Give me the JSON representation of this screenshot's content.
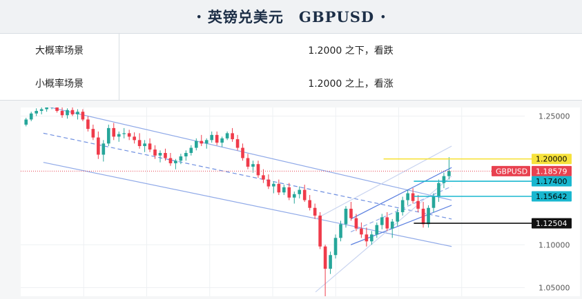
{
  "header": {
    "title": "英镑兑美元　GBPUSD"
  },
  "scenarios": [
    {
      "label": "大概率场景",
      "value": "1.2000 之下，看跌"
    },
    {
      "label": "小概率场景",
      "value": "1.2000 之上，看涨"
    }
  ],
  "chart_data": {
    "type": "candlestick",
    "ylim": [
      1.04,
      1.26
    ],
    "yticks": [
      {
        "value": 1.25,
        "label": "1.25000"
      },
      {
        "value": 1.1,
        "label": "1.10000"
      },
      {
        "value": 1.05,
        "label": "1.05000"
      }
    ],
    "price_labels": [
      {
        "value": 1.2,
        "label": "1.20000",
        "color": "#f7e23c",
        "text_color": "#000000"
      },
      {
        "value": 1.18579,
        "label": "1.18579",
        "tag": "GBPUSD",
        "color": "#e8414f",
        "text_color": "#ffffff"
      },
      {
        "value": 1.174,
        "label": "1.17400",
        "color": "#19b7cf",
        "text_color": "#000000"
      },
      {
        "value": 1.15642,
        "label": "1.15642",
        "color": "#19b7cf",
        "text_color": "#000000"
      },
      {
        "value": 1.12504,
        "label": "1.12504",
        "color": "#111111",
        "text_color": "#ffffff"
      }
    ],
    "candles": [
      [
        1.24,
        1.248,
        1.238,
        1.246
      ],
      [
        1.246,
        1.255,
        1.244,
        1.253
      ],
      [
        1.253,
        1.259,
        1.25,
        1.256
      ],
      [
        1.256,
        1.262,
        1.252,
        1.258
      ],
      [
        1.258,
        1.266,
        1.255,
        1.262
      ],
      [
        1.262,
        1.268,
        1.258,
        1.264
      ],
      [
        1.264,
        1.267,
        1.254,
        1.256
      ],
      [
        1.256,
        1.26,
        1.248,
        1.251
      ],
      [
        1.251,
        1.259,
        1.247,
        1.257
      ],
      [
        1.257,
        1.262,
        1.25,
        1.252
      ],
      [
        1.252,
        1.258,
        1.246,
        1.255
      ],
      [
        1.255,
        1.258,
        1.244,
        1.246
      ],
      [
        1.246,
        1.25,
        1.232,
        1.235
      ],
      [
        1.235,
        1.24,
        1.222,
        1.225
      ],
      [
        1.225,
        1.232,
        1.2,
        1.205
      ],
      [
        1.205,
        1.222,
        1.197,
        1.218
      ],
      [
        1.218,
        1.24,
        1.215,
        1.236
      ],
      [
        1.236,
        1.242,
        1.222,
        1.226
      ],
      [
        1.226,
        1.232,
        1.22,
        1.229
      ],
      [
        1.229,
        1.236,
        1.224,
        1.23
      ],
      [
        1.23,
        1.234,
        1.222,
        1.226
      ],
      [
        1.226,
        1.231,
        1.218,
        1.222
      ],
      [
        1.222,
        1.23,
        1.212,
        1.215
      ],
      [
        1.215,
        1.222,
        1.208,
        1.218
      ],
      [
        1.218,
        1.224,
        1.208,
        1.211
      ],
      [
        1.211,
        1.216,
        1.2,
        1.204
      ],
      [
        1.204,
        1.21,
        1.196,
        1.207
      ],
      [
        1.207,
        1.212,
        1.198,
        1.201
      ],
      [
        1.201,
        1.207,
        1.192,
        1.195
      ],
      [
        1.195,
        1.2,
        1.188,
        1.198
      ],
      [
        1.198,
        1.206,
        1.194,
        1.203
      ],
      [
        1.203,
        1.21,
        1.198,
        1.207
      ],
      [
        1.207,
        1.216,
        1.204,
        1.213
      ],
      [
        1.213,
        1.224,
        1.21,
        1.221
      ],
      [
        1.221,
        1.228,
        1.215,
        1.218
      ],
      [
        1.218,
        1.224,
        1.212,
        1.222
      ],
      [
        1.222,
        1.232,
        1.219,
        1.228
      ],
      [
        1.228,
        1.232,
        1.216,
        1.219
      ],
      [
        1.219,
        1.226,
        1.214,
        1.224
      ],
      [
        1.224,
        1.232,
        1.222,
        1.23
      ],
      [
        1.23,
        1.236,
        1.22,
        1.223
      ],
      [
        1.223,
        1.228,
        1.21,
        1.213
      ],
      [
        1.213,
        1.218,
        1.198,
        1.201
      ],
      [
        1.201,
        1.206,
        1.188,
        1.191
      ],
      [
        1.191,
        1.198,
        1.184,
        1.194
      ],
      [
        1.194,
        1.198,
        1.178,
        1.181
      ],
      [
        1.181,
        1.188,
        1.172,
        1.176
      ],
      [
        1.176,
        1.182,
        1.165,
        1.168
      ],
      [
        1.168,
        1.174,
        1.16,
        1.171
      ],
      [
        1.171,
        1.176,
        1.158,
        1.161
      ],
      [
        1.161,
        1.17,
        1.158,
        1.167
      ],
      [
        1.167,
        1.172,
        1.152,
        1.155
      ],
      [
        1.155,
        1.162,
        1.148,
        1.159
      ],
      [
        1.159,
        1.168,
        1.154,
        1.164
      ],
      [
        1.164,
        1.17,
        1.15,
        1.152
      ],
      [
        1.152,
        1.158,
        1.14,
        1.143
      ],
      [
        1.143,
        1.148,
        1.13,
        1.134
      ],
      [
        1.134,
        1.138,
        1.095,
        1.098
      ],
      [
        1.098,
        1.1,
        1.04,
        1.072
      ],
      [
        1.072,
        1.092,
        1.066,
        1.088
      ],
      [
        1.088,
        1.112,
        1.084,
        1.108
      ],
      [
        1.108,
        1.128,
        1.104,
        1.124
      ],
      [
        1.124,
        1.145,
        1.12,
        1.142
      ],
      [
        1.142,
        1.15,
        1.128,
        1.131
      ],
      [
        1.131,
        1.136,
        1.116,
        1.119
      ],
      [
        1.119,
        1.126,
        1.108,
        1.112
      ],
      [
        1.112,
        1.12,
        1.098,
        1.104
      ],
      [
        1.104,
        1.116,
        1.1,
        1.112
      ],
      [
        1.112,
        1.126,
        1.108,
        1.123
      ],
      [
        1.123,
        1.136,
        1.118,
        1.132
      ],
      [
        1.132,
        1.138,
        1.116,
        1.119
      ],
      [
        1.119,
        1.13,
        1.108,
        1.127
      ],
      [
        1.127,
        1.142,
        1.122,
        1.138
      ],
      [
        1.138,
        1.156,
        1.134,
        1.152
      ],
      [
        1.152,
        1.164,
        1.146,
        1.16
      ],
      [
        1.16,
        1.166,
        1.148,
        1.151
      ],
      [
        1.151,
        1.158,
        1.138,
        1.142
      ],
      [
        1.142,
        1.15,
        1.12,
        1.124
      ],
      [
        1.124,
        1.146,
        1.12,
        1.143
      ],
      [
        1.143,
        1.16,
        1.138,
        1.156
      ],
      [
        1.156,
        1.176,
        1.15,
        1.172
      ],
      [
        1.172,
        1.184,
        1.166,
        1.18
      ],
      [
        1.18,
        1.202,
        1.176,
        1.186
      ]
    ],
    "trend_lines": [
      {
        "from": [
          0.045,
          1.262
        ],
        "to": [
          0.855,
          1.152
        ],
        "color": "#8fa9e8",
        "dash": false
      },
      {
        "from": [
          0.045,
          1.196
        ],
        "to": [
          0.855,
          1.098
        ],
        "color": "#8fa9e8",
        "dash": false
      },
      {
        "from": [
          0.045,
          1.23
        ],
        "to": [
          0.855,
          1.13
        ],
        "color": "#6d8ee0",
        "dash": true
      },
      {
        "from": [
          0.655,
          1.13
        ],
        "to": [
          0.855,
          1.19
        ],
        "color": "#5a7fe0",
        "dash": false
      },
      {
        "from": [
          0.655,
          1.1
        ],
        "to": [
          0.855,
          1.146
        ],
        "color": "#5a7fe0",
        "dash": false
      },
      {
        "from": [
          0.655,
          1.115
        ],
        "to": [
          0.855,
          1.168
        ],
        "color": "#8fa9e8",
        "dash": true
      },
      {
        "from": [
          0.585,
          1.045
        ],
        "to": [
          0.855,
          1.18
        ],
        "color": "#c9d4f0",
        "dash": false
      },
      {
        "from": [
          0.585,
          1.13
        ],
        "to": [
          0.855,
          1.215
        ],
        "color": "#c9d4f0",
        "dash": false
      }
    ],
    "h_segments": [
      {
        "value": 1.2,
        "from": 0.72,
        "color": "#f7e23c"
      },
      {
        "value": 1.174,
        "from": 0.78,
        "color": "#19b7cf"
      },
      {
        "value": 1.15642,
        "from": 0.78,
        "color": "#19b7cf"
      },
      {
        "value": 1.12504,
        "from": 0.78,
        "color": "#111111"
      }
    ],
    "current_price": 1.18579,
    "colors": {
      "up": "#26a69a",
      "down": "#ef3b4a",
      "grid": "#eef0f3"
    }
  }
}
